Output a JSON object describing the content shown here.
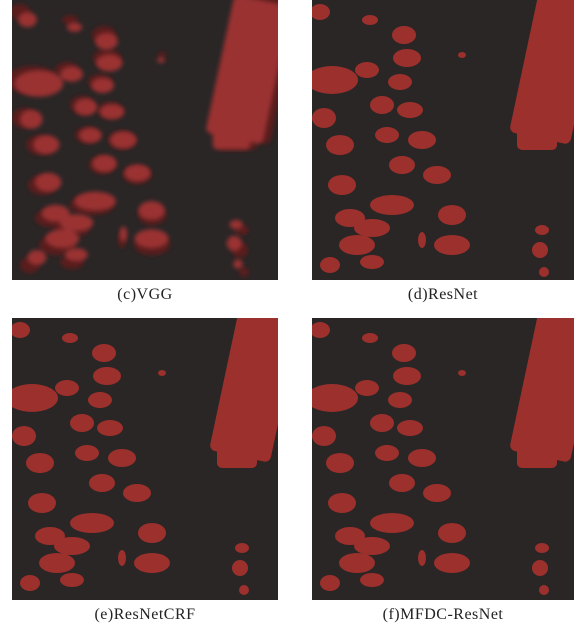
{
  "panels": [
    {
      "caption": "(c)VGG"
    },
    {
      "caption": "(d)ResNet"
    },
    {
      "caption": "(e)ResNetCRF"
    },
    {
      "caption": "(f)MFDC-ResNet"
    }
  ]
}
